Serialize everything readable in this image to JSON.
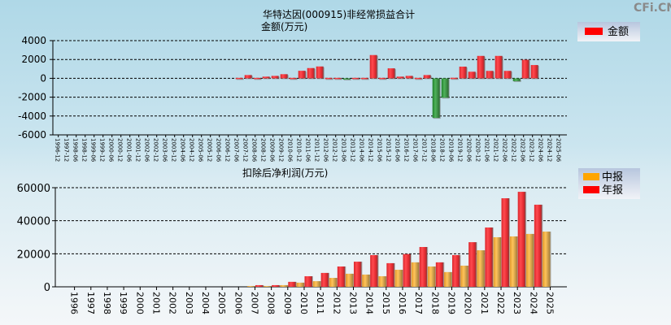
{
  "watermark": "CFi.CN",
  "chart_data": [
    {
      "type": "bar",
      "title": "华特达因(000915)非经常损益合计",
      "ylabel": "金额(万元)",
      "ylim": [
        -6000,
        4000
      ],
      "yticks": [
        4000,
        2000,
        0,
        -2000,
        -4000,
        -6000
      ],
      "grid": true,
      "legend": {
        "position": "top-right",
        "entries": [
          "金额"
        ]
      },
      "categories": [
        "1996-12",
        "1997-12",
        "1998-06",
        "1998-12",
        "1999-06",
        "1999-12",
        "2000-06",
        "2000-12",
        "2001-06",
        "2001-12",
        "2002-06",
        "2002-12",
        "2003-06",
        "2003-12",
        "2004-06",
        "2004-12",
        "2005-06",
        "2005-12",
        "2006-06",
        "2006-12",
        "2007-06",
        "2007-12",
        "2008-06",
        "2008-12",
        "2009-06",
        "2009-12",
        "2010-06",
        "2010-12",
        "2011-06",
        "2011-12",
        "2012-06",
        "2012-12",
        "2013-06",
        "2013-12",
        "2014-06",
        "2014-12",
        "2015-06",
        "2015-12",
        "2016-06",
        "2016-12",
        "2017-06",
        "2017-12",
        "2018-06",
        "2018-12",
        "2019-06",
        "2019-12",
        "2020-06",
        "2020-12",
        "2021-06",
        "2021-12",
        "2022-06",
        "2022-12",
        "2023-06",
        "2023-12",
        "2024-06",
        "2024-12",
        "2025-06"
      ],
      "series": [
        {
          "name": "金额",
          "color": "#ff0000",
          "negative_color": "#2e9a3a",
          "values": [
            null,
            null,
            null,
            null,
            null,
            null,
            null,
            null,
            null,
            null,
            null,
            null,
            null,
            null,
            null,
            null,
            null,
            null,
            null,
            null,
            50,
            350,
            50,
            180,
            260,
            440,
            50,
            800,
            1090,
            1260,
            50,
            50,
            -100,
            50,
            50,
            2470,
            50,
            1060,
            180,
            260,
            50,
            350,
            -4200,
            -2060,
            60,
            1240,
            700,
            2380,
            790,
            2380,
            790,
            -300,
            1970,
            1410,
            null,
            null,
            null
          ]
        }
      ]
    },
    {
      "type": "bar",
      "title": "扣除后净利润(万元)",
      "ylim": [
        0,
        60000
      ],
      "yticks": [
        60000,
        40000,
        20000,
        0
      ],
      "grid": true,
      "legend": {
        "position": "top-right",
        "entries": [
          "中报",
          "年报"
        ]
      },
      "categories": [
        "1996",
        "1997",
        "1998",
        "1999",
        "2000",
        "2001",
        "2002",
        "2003",
        "2004",
        "2005",
        "2006",
        "2007",
        "2008",
        "2009",
        "2010",
        "2011",
        "2012",
        "2013",
        "2014",
        "2015",
        "2016",
        "2017",
        "2018",
        "2019",
        "2020",
        "2021",
        "2022",
        "2023",
        "2024",
        "2025"
      ],
      "series": [
        {
          "name": "中报",
          "color": "#ffa500",
          "values": [
            null,
            null,
            null,
            null,
            null,
            null,
            null,
            null,
            null,
            null,
            null,
            500,
            500,
            1000,
            2500,
            3400,
            5400,
            7900,
            7400,
            6400,
            10300,
            14800,
            12300,
            8900,
            12800,
            22100,
            30000,
            30500,
            32000,
            33400
          ]
        },
        {
          "name": "年报",
          "color": "#ff0000",
          "values": [
            null,
            null,
            null,
            null,
            null,
            null,
            null,
            null,
            null,
            null,
            null,
            1000,
            1000,
            3000,
            6400,
            8400,
            12300,
            15200,
            19200,
            14300,
            19800,
            24100,
            14800,
            19200,
            27000,
            35900,
            53600,
            57500,
            49700,
            null
          ]
        }
      ]
    }
  ]
}
